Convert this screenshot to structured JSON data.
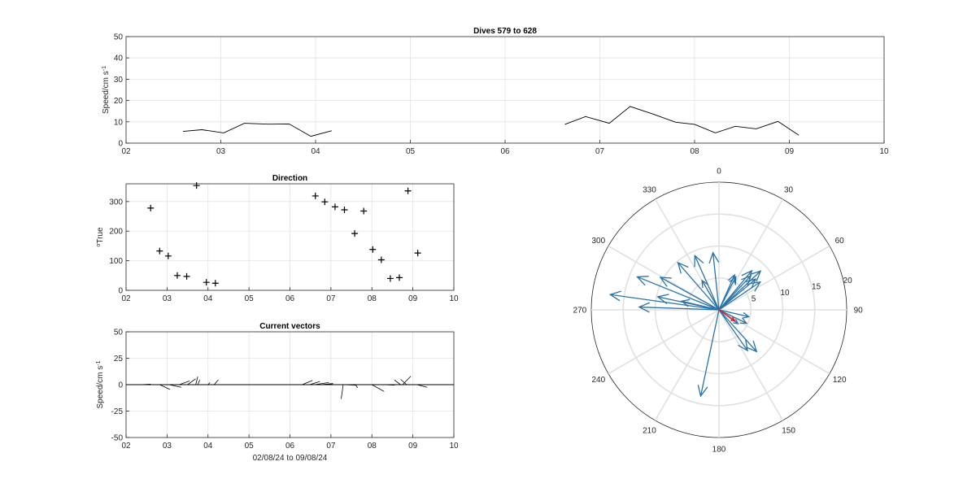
{
  "chart_data": [
    {
      "type": "line",
      "title": "Dives 579 to 628",
      "ylabel_main": "Speed/cm s",
      "ylabel_sup": "-1",
      "xlabel": "",
      "xlim": [
        2,
        10
      ],
      "ylim": [
        0,
        50
      ],
      "x_ticks": [
        2,
        3,
        4,
        5,
        6,
        7,
        8,
        9,
        10
      ],
      "x_tick_labels": [
        "02",
        "03",
        "04",
        "05",
        "06",
        "07",
        "08",
        "09",
        "10"
      ],
      "y_ticks": [
        0,
        10,
        20,
        30,
        40,
        50
      ],
      "y_tick_labels": [
        "0",
        "10",
        "20",
        "30",
        "40",
        "50"
      ],
      "grid": true,
      "series": [
        {
          "color": "#000000",
          "x": [
            2.6,
            2.8,
            3.03,
            3.25,
            3.5,
            3.72,
            3.95,
            4.17
          ],
          "y": [
            5.5,
            6.3,
            4.8,
            9.3,
            8.9,
            9.0,
            3.2,
            5.8
          ]
        },
        {
          "color": "#000000",
          "x": [
            6.63,
            6.85,
            7.1,
            7.32,
            7.55,
            7.8,
            8.0,
            8.22,
            8.43,
            8.65,
            8.88,
            9.1
          ],
          "y": [
            8.8,
            12.5,
            9.3,
            17.2,
            13.8,
            9.8,
            8.8,
            4.8,
            7.9,
            6.7,
            10.2,
            3.7
          ]
        }
      ]
    },
    {
      "type": "scatter",
      "title": "Direction",
      "ylabel_main": "True",
      "ylabel_sup": "o",
      "xlabel": "",
      "xlim": [
        2,
        10
      ],
      "ylim": [
        0,
        360
      ],
      "x_ticks": [
        2,
        3,
        4,
        5,
        6,
        7,
        8,
        9,
        10
      ],
      "x_tick_labels": [
        "02",
        "03",
        "04",
        "05",
        "06",
        "07",
        "08",
        "09",
        "10"
      ],
      "y_ticks": [
        0,
        100,
        200,
        300
      ],
      "y_tick_labels": [
        "0",
        "100",
        "200",
        "300"
      ],
      "grid": true,
      "marker": "+",
      "x": [
        2.6,
        2.82,
        3.03,
        3.25,
        3.48,
        3.72,
        3.96,
        4.18,
        6.62,
        6.85,
        7.1,
        7.33,
        7.58,
        7.8,
        8.02,
        8.23,
        8.45,
        8.67,
        8.88,
        9.12
      ],
      "y": [
        278,
        133,
        116,
        50,
        47,
        354,
        27,
        24,
        319,
        299,
        282,
        272,
        192,
        268,
        138,
        103,
        40,
        43,
        336,
        126
      ]
    },
    {
      "type": "quiver",
      "title": "Current vectors",
      "ylabel_main": "Speed/cm s",
      "ylabel_sup": "-1",
      "xlabel": "02/08/24 to 09/08/24",
      "xlim": [
        2,
        10
      ],
      "ylim": [
        -50,
        50
      ],
      "x_ticks": [
        2,
        3,
        4,
        5,
        6,
        7,
        8,
        9,
        10
      ],
      "x_tick_labels": [
        "02",
        "03",
        "04",
        "05",
        "06",
        "07",
        "08",
        "09",
        "10"
      ],
      "y_ticks": [
        -50,
        -25,
        0,
        25,
        50
      ],
      "y_tick_labels": [
        "-50",
        "-25",
        "0",
        "25",
        "50"
      ],
      "grid": true,
      "vectors": [
        {
          "x": 2.35,
          "u": 0.25,
          "v": 0.5
        },
        {
          "x": 2.82,
          "u": 0.25,
          "v": -4.5
        },
        {
          "x": 3.05,
          "u": 0.3,
          "v": -2.5
        },
        {
          "x": 3.3,
          "u": 0.25,
          "v": 3.5
        },
        {
          "x": 3.5,
          "u": 0.2,
          "v": 5.5
        },
        {
          "x": 3.7,
          "u": 0.05,
          "v": 7.5
        },
        {
          "x": 3.75,
          "u": 0.05,
          "v": 4.5
        },
        {
          "x": 4.0,
          "u": 0.05,
          "v": 2.0
        },
        {
          "x": 4.15,
          "u": 0.1,
          "v": 4.5
        },
        {
          "x": 6.3,
          "u": 0.25,
          "v": 4.0
        },
        {
          "x": 6.48,
          "u": 0.25,
          "v": 3.0
        },
        {
          "x": 6.6,
          "u": 0.35,
          "v": 2.0
        },
        {
          "x": 6.75,
          "u": 0.3,
          "v": 1.0
        },
        {
          "x": 6.85,
          "u": 0.2,
          "v": 1.0
        },
        {
          "x": 7.3,
          "u": -0.05,
          "v": -13.5
        },
        {
          "x": 7.3,
          "u": 0.3,
          "v": -0.5
        },
        {
          "x": 7.6,
          "u": 0.05,
          "v": -3.0
        },
        {
          "x": 8.0,
          "u": 0.3,
          "v": -6.5
        },
        {
          "x": 8.3,
          "u": 0.25,
          "v": -0.5
        },
        {
          "x": 8.7,
          "u": -0.15,
          "v": 4.5
        },
        {
          "x": 8.75,
          "u": 0.2,
          "v": 8.0
        },
        {
          "x": 8.85,
          "u": -0.15,
          "v": 5.0
        },
        {
          "x": 9.1,
          "u": 0.25,
          "v": -2.5
        }
      ]
    },
    {
      "type": "polar-compass",
      "title": "",
      "r_max": 20,
      "r_ticks": [
        5,
        10,
        15,
        20
      ],
      "r_tick_labels": [
        "5",
        "10",
        "15",
        "20"
      ],
      "theta_ticks": [
        0,
        30,
        60,
        90,
        120,
        150,
        180,
        210,
        240,
        270,
        300,
        330
      ],
      "theta_tick_labels": [
        "0",
        "30",
        "60",
        "90",
        "120",
        "150",
        "180",
        "210",
        "240",
        "270",
        "300",
        "330"
      ],
      "theta_zero": "top",
      "theta_direction": "clockwise",
      "arrow_color": "#2a73a8",
      "mean_color": "#d62728",
      "arrows": [
        {
          "dir": 278,
          "speed": 17.2
        },
        {
          "dir": 282,
          "speed": 9.8
        },
        {
          "dir": 272,
          "speed": 12.5
        },
        {
          "dir": 299,
          "speed": 10.5
        },
        {
          "dir": 292,
          "speed": 13.8
        },
        {
          "dir": 319,
          "speed": 9.8
        },
        {
          "dir": 336,
          "speed": 9.3
        },
        {
          "dir": 354,
          "speed": 9.0
        },
        {
          "dir": 330,
          "speed": 5.3
        },
        {
          "dir": 283,
          "speed": 6.0
        },
        {
          "dir": 24,
          "speed": 6.0
        },
        {
          "dir": 27,
          "speed": 5.8
        },
        {
          "dir": 40,
          "speed": 8.0
        },
        {
          "dir": 43,
          "speed": 7.3
        },
        {
          "dir": 47,
          "speed": 8.9
        },
        {
          "dir": 50,
          "speed": 7.5
        },
        {
          "dir": 56,
          "speed": 7.8
        },
        {
          "dir": 103,
          "speed": 4.8
        },
        {
          "dir": 116,
          "speed": 4.8
        },
        {
          "dir": 126,
          "speed": 3.7
        },
        {
          "dir": 138,
          "speed": 8.8
        },
        {
          "dir": 145,
          "speed": 7.8
        },
        {
          "dir": 192,
          "speed": 13.8
        }
      ],
      "mean_vector": {
        "dir": 125,
        "speed": 3.0
      }
    }
  ]
}
